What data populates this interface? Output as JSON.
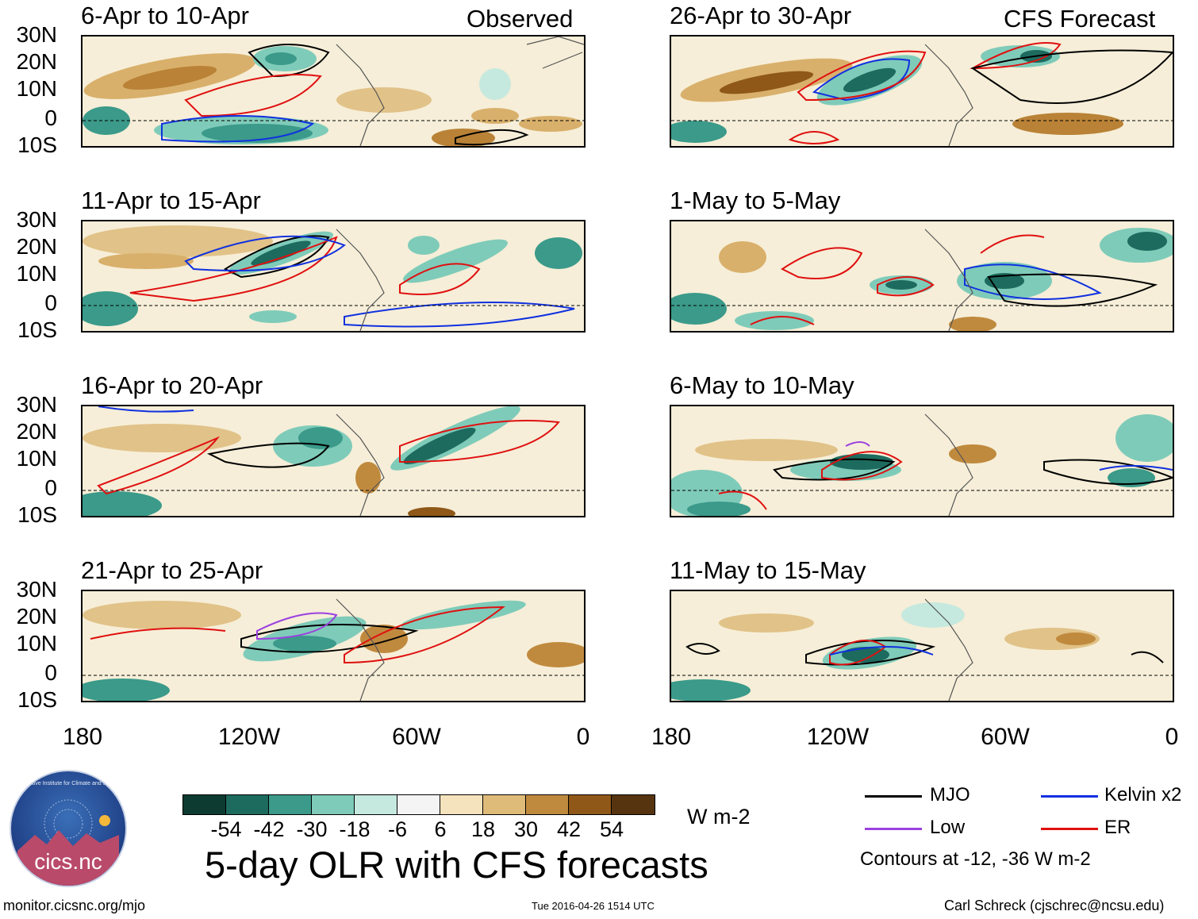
{
  "header": {
    "left_tag": "Observed",
    "right_tag": "CFS Forecast"
  },
  "panels_left": [
    {
      "title": "6-Apr to 10-Apr"
    },
    {
      "title": "11-Apr to 15-Apr"
    },
    {
      "title": "16-Apr to 20-Apr"
    },
    {
      "title": "21-Apr to 25-Apr"
    }
  ],
  "panels_right": [
    {
      "title": "26-Apr to 30-Apr"
    },
    {
      "title": "1-May to 5-May"
    },
    {
      "title": "6-May to 10-May"
    },
    {
      "title": "11-May to 15-May"
    }
  ],
  "axes": {
    "lat_labels": [
      "30N",
      "20N",
      "10N",
      "0",
      "10S"
    ],
    "lon_labels": [
      "180",
      "120W",
      "60W",
      "0"
    ]
  },
  "colorbar": {
    "labels": [
      "-54",
      "-42",
      "-30",
      "-18",
      "-6",
      "6",
      "18",
      "30",
      "42",
      "54"
    ],
    "colors": [
      "#0d3b32",
      "#1d6b5e",
      "#3b9a8a",
      "#7fcbb9",
      "#c6e9df",
      "#f4f4f4",
      "#f4e3bd",
      "#dfbb7a",
      "#c08a3e",
      "#8f5818",
      "#573410"
    ],
    "units": "W m-2"
  },
  "title": "5-day OLR with CFS forecasts",
  "legend": {
    "items": [
      {
        "label": "MJO",
        "color": "#000000"
      },
      {
        "label": "Kelvin x2",
        "color": "#1030e0"
      },
      {
        "label": "Low",
        "color": "#9b40e0"
      },
      {
        "label": "ER",
        "color": "#e01010"
      }
    ],
    "note": "Contours at -12, -36 W m-2"
  },
  "logo": {
    "text": "cics.nc",
    "ring_text": "Cooperative Institute for Climate and Satellites"
  },
  "footer": {
    "url": "monitor.cicsnc.org/mjo",
    "timestamp": "Tue 2016-04-26 1514 UTC",
    "credit": "Carl Schreck (cjschrec@ncsu.edu)"
  }
}
